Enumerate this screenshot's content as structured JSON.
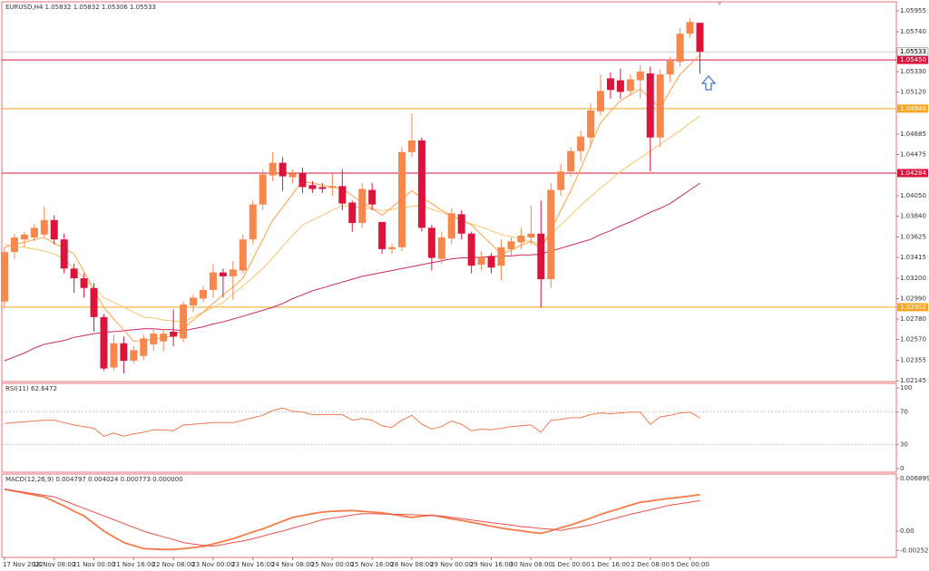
{
  "chart_data": [
    {
      "type": "candlestick",
      "title": "EURUSD,H4  1.05832 1.05832 1.05306 1.05533",
      "up_color": "#f7874d",
      "down_color": "#dc143c",
      "categories": [
        "17 Nov 2022",
        null,
        null,
        null,
        null,
        "18 Nov 08:00",
        null,
        null,
        null,
        "21 Nov 00:00",
        null,
        null,
        null,
        "21 Nov 16:00",
        null,
        null,
        null,
        "22 Nov 08:00",
        null,
        null,
        null,
        "23 Nov 00:00",
        null,
        null,
        null,
        "23 Nov 16:00",
        null,
        null,
        null,
        "24 Nov 08:00",
        null,
        null,
        null,
        "25 Nov 00:00",
        null,
        null,
        null,
        "25 Nov 16:00",
        null,
        null,
        null,
        "28 Nov 08:00",
        null,
        null,
        null,
        "29 Nov 00:00",
        null,
        null,
        null,
        "29 Nov 16:00",
        null,
        null,
        null,
        "30 Nov 08:00",
        null,
        null,
        null,
        "1 Dec 00:00",
        null,
        null,
        null,
        "1 Dec 16:00",
        null,
        null,
        null,
        "2 Dec 08:00",
        null,
        null,
        null,
        "5 Dec 00:00",
        null
      ],
      "open": [
        1.0296,
        1.0347,
        1.036,
        1.0362,
        1.0365,
        1.038,
        1.036,
        1.033,
        1.032,
        1.031,
        1.028,
        1.0228,
        1.0253,
        1.0235,
        1.024,
        1.0252,
        1.0255,
        1.0265,
        1.0258,
        1.0292,
        1.0299,
        1.0308,
        1.0326,
        1.0322,
        1.0328,
        1.036,
        1.0396,
        1.0426,
        1.0439,
        1.0424,
        1.0428,
        1.0416,
        1.0414,
        1.0413,
        1.0415,
        1.0398,
        1.0377,
        1.0411,
        1.0378,
        1.035,
        1.0352,
        1.045,
        1.0462,
        1.0372,
        1.034,
        1.0361,
        1.0386,
        1.0366,
        1.0334,
        1.0343,
        1.0333,
        1.035,
        1.0357,
        1.0362,
        1.0366,
        1.0319,
        1.0411,
        1.043,
        1.0451,
        1.0465,
        1.0492,
        1.0526,
        1.0524,
        1.0513,
        1.0524,
        1.0531,
        1.0465,
        1.053,
        1.0543,
        1.0572,
        1.05832
      ],
      "high": [
        1.0352,
        1.0366,
        1.0368,
        1.0376,
        1.0394,
        1.0385,
        1.0366,
        1.0335,
        1.0325,
        1.0315,
        1.0283,
        1.0262,
        1.026,
        1.025,
        1.0262,
        1.0268,
        1.0268,
        1.0288,
        1.0296,
        1.0303,
        1.0312,
        1.0335,
        1.033,
        1.0338,
        1.0365,
        1.04,
        1.0432,
        1.045,
        1.0445,
        1.0432,
        1.0434,
        1.042,
        1.0418,
        1.0428,
        1.0432,
        1.04,
        1.0418,
        1.0418,
        1.0378,
        1.0356,
        1.0455,
        1.049,
        1.0465,
        1.0375,
        1.0368,
        1.0392,
        1.039,
        1.0368,
        1.0348,
        1.0346,
        1.036,
        1.0362,
        1.0372,
        1.0395,
        1.04,
        1.0418,
        1.0438,
        1.0455,
        1.0472,
        1.05,
        1.053,
        1.0532,
        1.0536,
        1.053,
        1.054,
        1.0538,
        1.0535,
        1.0548,
        1.0578,
        1.0588,
        1.05832
      ],
      "low": [
        1.029,
        1.034,
        1.0352,
        1.0358,
        1.0362,
        1.0355,
        1.0325,
        1.0305,
        1.03,
        1.0265,
        1.0225,
        1.0225,
        1.0222,
        1.0232,
        1.0236,
        1.0245,
        1.0245,
        1.025,
        1.0254,
        1.0285,
        1.0295,
        1.03,
        1.03,
        1.0298,
        1.0325,
        1.0355,
        1.039,
        1.042,
        1.041,
        1.0418,
        1.0408,
        1.0408,
        1.0408,
        1.0405,
        1.039,
        1.0368,
        1.0372,
        1.039,
        1.0345,
        1.0345,
        1.0348,
        1.0445,
        1.0368,
        1.0328,
        1.0335,
        1.0355,
        1.036,
        1.0325,
        1.0328,
        1.0325,
        1.0318,
        1.0342,
        1.035,
        1.0355,
        1.029,
        1.031,
        1.0405,
        1.0425,
        1.044,
        1.0455,
        1.0488,
        1.0505,
        1.0505,
        1.0508,
        1.0505,
        1.043,
        1.0455,
        1.0522,
        1.0538,
        1.0568,
        1.05306
      ],
      "close": [
        1.0347,
        1.0362,
        1.0365,
        1.0372,
        1.038,
        1.036,
        1.033,
        1.032,
        1.031,
        1.028,
        1.0227,
        1.0253,
        1.0235,
        1.0246,
        1.0258,
        1.0263,
        1.0263,
        1.026,
        1.0293,
        1.03,
        1.0308,
        1.0326,
        1.0322,
        1.0329,
        1.036,
        1.0396,
        1.0427,
        1.0439,
        1.0425,
        1.0428,
        1.0414,
        1.0412,
        1.0412,
        1.0415,
        1.0397,
        1.0377,
        1.0412,
        1.0396,
        1.035,
        1.0352,
        1.045,
        1.0462,
        1.0372,
        1.0341,
        1.0362,
        1.0387,
        1.0366,
        1.0333,
        1.0342,
        1.0331,
        1.0352,
        1.0358,
        1.0364,
        1.0366,
        1.0319,
        1.0411,
        1.043,
        1.0451,
        1.0466,
        1.0493,
        1.0513,
        1.0514,
        1.0512,
        1.0525,
        1.0533,
        1.0465,
        1.053,
        1.0544,
        1.0572,
        1.0584,
        1.05533
      ],
      "series": [
        {
          "color": "#c8286a",
          "values": [
            1.0235,
            1.0239,
            1.0243,
            1.0248,
            1.0252,
            1.0254,
            1.0256,
            1.0259,
            1.0261,
            1.0263,
            1.0264,
            1.0265,
            1.0266,
            1.0267,
            1.0268,
            1.0268,
            1.0267,
            1.0267,
            1.0266,
            1.0268,
            1.027,
            1.0273,
            1.0275,
            1.0278,
            1.0281,
            1.0284,
            1.0287,
            1.029,
            1.0294,
            1.0299,
            1.0303,
            1.0307,
            1.031,
            1.0313,
            1.0316,
            1.0319,
            1.0322,
            1.0324,
            1.0326,
            1.0328,
            1.033,
            1.0332,
            1.0334,
            1.0336,
            1.0338,
            1.034,
            1.0341,
            1.0341,
            1.0342,
            1.0342,
            1.0343,
            1.0343,
            1.0344,
            1.0344,
            1.0345,
            1.0348,
            1.0351,
            1.0354,
            1.0357,
            1.036,
            1.0365,
            1.0369,
            1.0374,
            1.0378,
            1.0383,
            1.0388,
            1.0392,
            1.0397,
            1.0404,
            1.0411,
            1.0418
          ]
        },
        {
          "color": "#f7c56b",
          "values": [
            1.0355,
            1.0353,
            1.0352,
            1.035,
            1.0348,
            1.0345,
            1.034,
            1.033,
            1.032,
            1.031,
            1.03,
            1.0295,
            1.029,
            1.0285,
            1.028,
            1.0279,
            1.0277,
            1.0276,
            1.0275,
            1.028,
            1.0285,
            1.029,
            1.0295,
            1.0304,
            1.0312,
            1.0321,
            1.033,
            1.0341,
            1.0353,
            1.0364,
            1.0375,
            1.038,
            1.0385,
            1.039,
            1.0395,
            1.0394,
            1.0393,
            1.0391,
            1.039,
            1.0391,
            1.0393,
            1.0394,
            1.0395,
            1.0391,
            1.0388,
            1.0384,
            1.038,
            1.0376,
            1.0373,
            1.0369,
            1.0365,
            1.0363,
            1.036,
            1.0358,
            1.0355,
            1.0365,
            1.0375,
            1.0385,
            1.0395,
            1.0404,
            1.0413,
            1.0421,
            1.043,
            1.0437,
            1.0444,
            1.0451,
            1.0458,
            1.0465,
            1.0472,
            1.048,
            1.0487
          ]
        },
        {
          "color": "#ffa040",
          "values": [
            1.0352,
            1.0355,
            1.0357,
            1.036,
            1.0362,
            1.0356,
            1.0351,
            1.0345,
            1.0327,
            1.0308,
            1.029,
            1.0278,
            1.0267,
            1.0255,
            1.0256,
            1.0257,
            1.0259,
            1.026,
            1.0268,
            1.0277,
            1.0285,
            1.0294,
            1.0303,
            1.0311,
            1.032,
            1.034,
            1.036,
            1.038,
            1.0393,
            1.0407,
            1.042,
            1.0418,
            1.0416,
            1.0414,
            1.0412,
            1.0405,
            1.0398,
            1.0392,
            1.0385,
            1.0393,
            1.0402,
            1.041,
            1.0403,
            1.0397,
            1.039,
            1.0385,
            1.038,
            1.0375,
            1.0365,
            1.0355,
            1.0345,
            1.0349,
            1.0354,
            1.0358,
            1.035,
            1.037,
            1.039,
            1.041,
            1.0433,
            1.0457,
            1.048,
            1.0492,
            1.0503,
            1.0509,
            1.0515,
            1.0505,
            1.0495,
            1.0513,
            1.053,
            1.054,
            1.055
          ]
        }
      ],
      "levels": [
        {
          "value": 1.0545,
          "label": "1.05450",
          "color": "#dc143c"
        },
        {
          "value": 1.04948,
          "label": "1.04948",
          "color": "#f5a623"
        },
        {
          "value": 1.04284,
          "label": "1.04284",
          "color": "#dc143c"
        },
        {
          "value": 1.02902,
          "label": "1.02902",
          "color": "#f5a623"
        }
      ],
      "current_price": {
        "value": 1.05533,
        "label": "1.05533",
        "color": "#b0b0b0"
      },
      "ylim": [
        1.02145,
        1.05955
      ],
      "yticks": [
        1.05955,
        {
          "value": 1.0574,
          "label": "1.05740"
        },
        {
          "value": 1.0533,
          "label": "1.05330"
        },
        {
          "value": 1.0512,
          "label": "1.05120"
        },
        1.04685,
        1.04475,
        {
          "value": 1.0405,
          "label": "1.04050"
        },
        {
          "value": 1.0384,
          "label": "1.03840"
        },
        1.03625,
        1.03415,
        {
          "value": 1.032,
          "label": "1.03200"
        },
        {
          "value": 1.0299,
          "label": "1.02990"
        },
        {
          "value": 1.0278,
          "label": "1.02780"
        },
        {
          "value": 1.0257,
          "label": "1.02570"
        },
        1.02355,
        1.02145
      ],
      "grid": false
    },
    {
      "type": "line",
      "title": "RSI(11) 62.6472",
      "series": [
        {
          "color": "#f07a50",
          "values": [
            56,
            57,
            58,
            59,
            60,
            60,
            57,
            54,
            52,
            50,
            40,
            44,
            40,
            43,
            45,
            48,
            48,
            47,
            54,
            55,
            56,
            57,
            57,
            57,
            60,
            63,
            66,
            72,
            75,
            71,
            70,
            67,
            67,
            67,
            67,
            60,
            62,
            60,
            53,
            51,
            60,
            66,
            55,
            49,
            52,
            59,
            55,
            47,
            49,
            48,
            50,
            52,
            53,
            54,
            45,
            60,
            61,
            63,
            63,
            67,
            69,
            68,
            69,
            70,
            70,
            55,
            64,
            66,
            69,
            70,
            62.6472
          ]
        }
      ],
      "ylim": [
        0,
        100
      ],
      "yticks": [
        100,
        70,
        30,
        0
      ],
      "grid": true
    },
    {
      "type": "line",
      "title": "MACD(12,26,9) 0.004797 0.004024 0.000773 0.000000",
      "series": [
        {
          "color": "#f57c47",
          "values": [
            0.0055,
            0.00525,
            0.005,
            0.00475,
            0.0045,
            0.0039,
            0.0033,
            0.0026,
            0.002,
            0.001,
            0.0,
            -0.00075,
            -0.0015,
            -0.0019,
            -0.0023,
            -0.00235,
            -0.0024,
            -0.0024,
            -0.0023,
            -0.00215,
            -0.002,
            -0.0017,
            -0.00135,
            -0.001,
            -0.00055,
            -0.0001,
            0.0003,
            0.0008,
            0.0013,
            0.0018,
            0.00205,
            0.0023,
            0.0025,
            0.0026,
            0.00265,
            0.0027,
            0.0026,
            0.0025,
            0.0024,
            0.0022,
            0.002,
            0.0018,
            0.00195,
            0.0021,
            0.00185,
            0.0016,
            0.0014,
            0.00115,
            0.0009,
            0.00065,
            0.0004,
            0.0002,
            5e-05,
            -0.00015,
            -0.0003,
            5e-05,
            0.00045,
            0.0008,
            0.00125,
            0.0017,
            0.0022,
            0.0026,
            0.003,
            0.0034,
            0.0038,
            0.00395,
            0.00415,
            0.0043,
            0.00445,
            0.0046,
            0.004797
          ]
        },
        {
          "color": "#e8524a",
          "values": [
            0.0055,
            0.0053,
            0.0051,
            0.0049,
            0.0047,
            0.0045,
            0.004,
            0.0035,
            0.003,
            0.0025,
            0.002,
            0.0015,
            0.001,
            0.0005,
            0.0,
            -0.0004,
            -0.00075,
            -0.0011,
            -0.0015,
            -0.0017,
            -0.00185,
            -0.002,
            -0.00175,
            -0.0015,
            -0.0013,
            -0.001,
            -0.00065,
            -0.0003,
            0.0,
            0.0004,
            0.00075,
            0.0011,
            0.0015,
            0.0017,
            0.0019,
            0.0021,
            0.0023,
            0.0023,
            0.00225,
            0.0022,
            0.0022,
            0.00215,
            0.0021,
            0.00205,
            0.002,
            0.0018,
            0.00165,
            0.00145,
            0.0013,
            0.0011,
            0.00095,
            0.0008,
            0.0006,
            0.0005,
            0.00035,
            0.00025,
            0.0001,
            0.00035,
            0.00055,
            0.0008,
            0.00115,
            0.0015,
            0.00185,
            0.0022,
            0.0025,
            0.0028,
            0.0031,
            0.0034,
            0.0036,
            0.0038,
            0.004024
          ]
        }
      ],
      "ylim": [
        -0.00345,
        0.006899
      ],
      "yticks": [
        0.006899,
        {
          "value": 0,
          "label": "0.00"
        },
        -0.002529
      ],
      "grid": false
    }
  ]
}
